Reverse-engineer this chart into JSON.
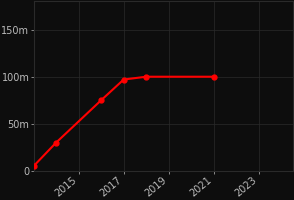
{
  "title_color": "#ff0000",
  "subtitle_color": "#ff0000",
  "bg_color": "#0d0d0d",
  "plot_bg_color": "#0d0d0d",
  "grid_color": "#2a2a2a",
  "line_color": "#ff0000",
  "marker_color": "#ff0000",
  "tick_label_color": "#bbbbbb",
  "x_values": [
    2013,
    2014,
    2016,
    2017,
    2018,
    2021
  ],
  "y_values": [
    5000000,
    30000000,
    75000000,
    97000000,
    100000000,
    100000000
  ],
  "xlim": [
    2013.0,
    2024.5
  ],
  "ylim": [
    0,
    180000000
  ],
  "xticks": [
    2015,
    2017,
    2019,
    2021,
    2023
  ],
  "yticks": [
    0,
    50000000,
    100000000,
    150000000
  ],
  "ytick_labels": [
    "0",
    "50m",
    "100m",
    "150m"
  ],
  "title_fontsize": 15,
  "subtitle_fontsize": 9,
  "tick_fontsize": 7
}
